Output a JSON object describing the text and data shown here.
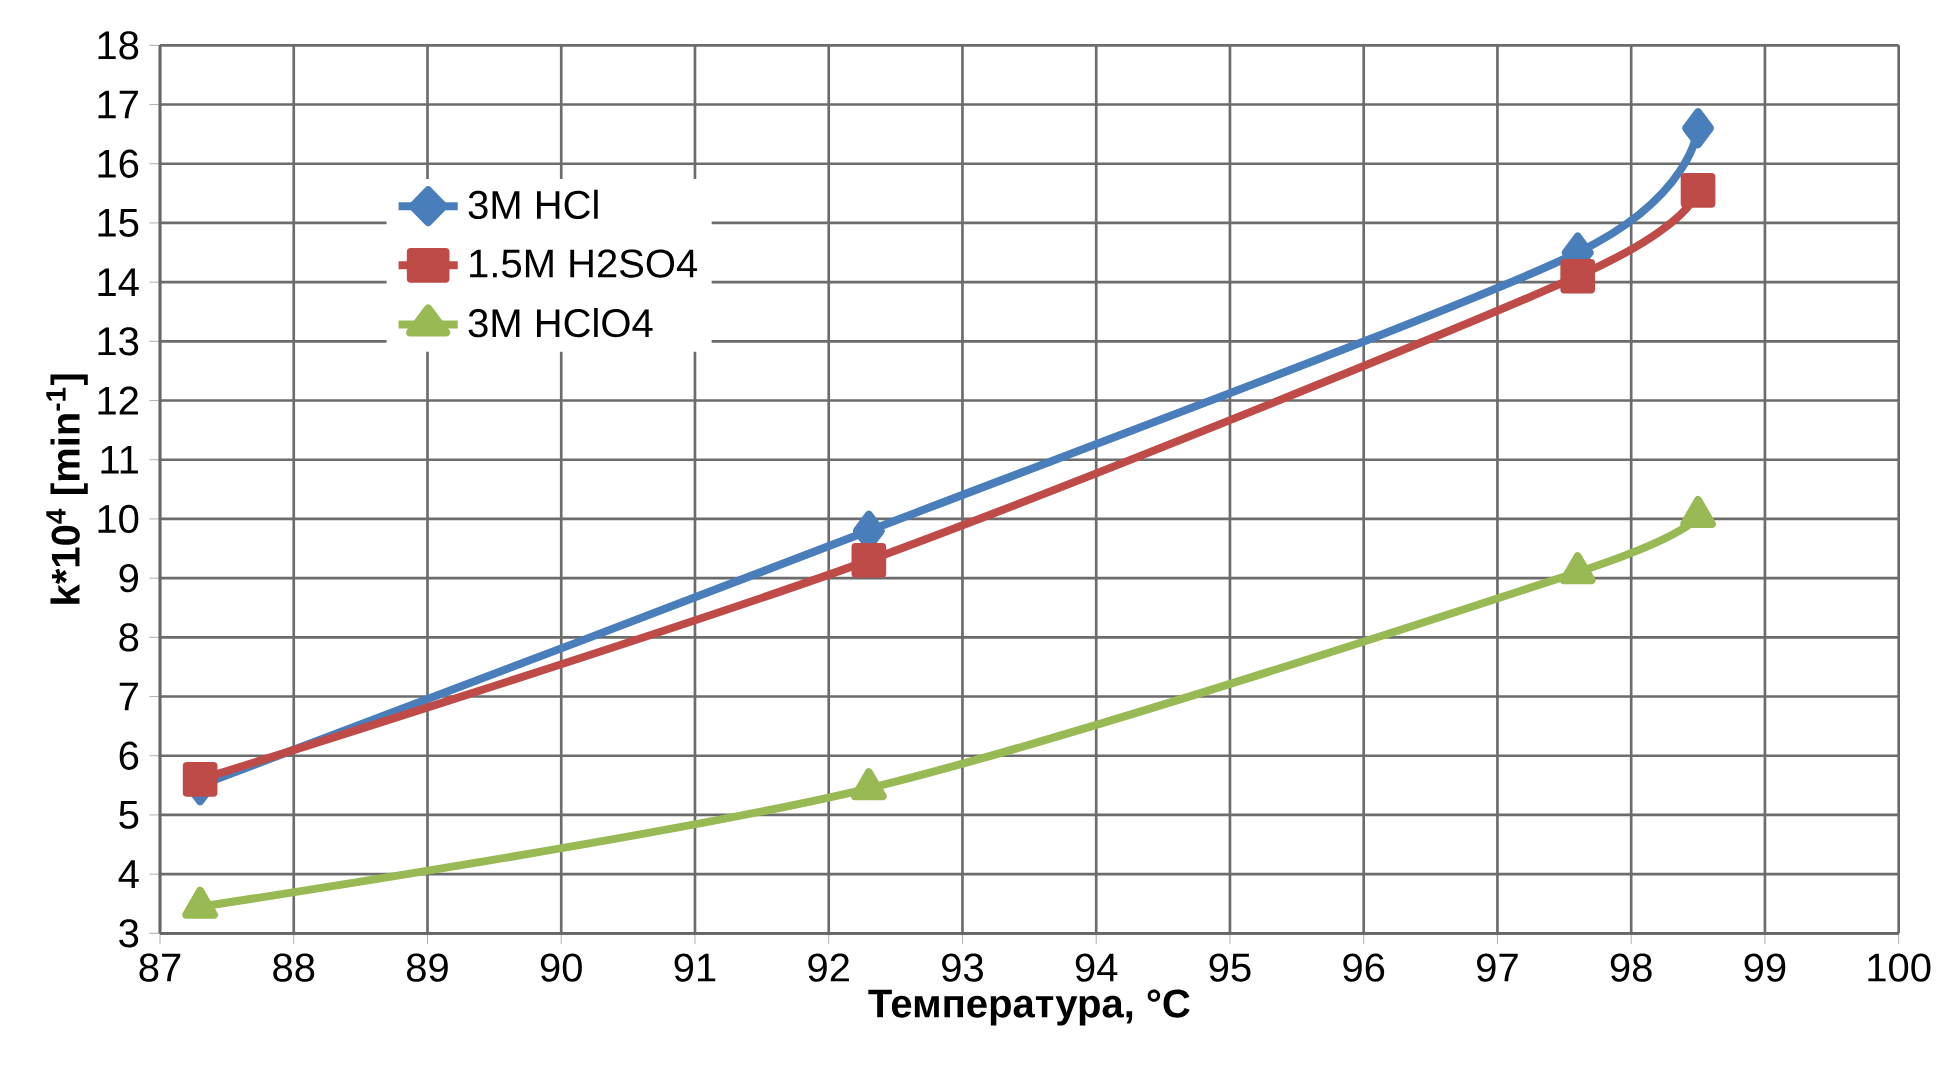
{
  "chart_data": {
    "type": "line",
    "xlabel": "Температура, °C",
    "ylabel": "k*10$^{4}$ [min$^{-1}$]",
    "x": [
      87.3,
      92.3,
      97.6,
      98.5
    ],
    "series": [
      {
        "name": "3M HCl",
        "color": "#4a7ebb",
        "marker": "diamond",
        "values": [
          5.5,
          9.8,
          14.5,
          16.6
        ]
      },
      {
        "name": "1.5M H2SO4",
        "color": "#be4b48",
        "marker": "square",
        "values": [
          5.6,
          9.3,
          14.1,
          15.55
        ]
      },
      {
        "name": "3M HClO4",
        "color": "#98b954",
        "marker": "triangle",
        "values": [
          3.45,
          5.45,
          9.1,
          10.05
        ]
      }
    ],
    "xlim": [
      87,
      100
    ],
    "xticks": [
      87,
      88,
      89,
      90,
      91,
      92,
      93,
      94,
      95,
      96,
      97,
      98,
      99,
      100
    ],
    "ylim": [
      3,
      18
    ],
    "yticks": [
      3,
      4,
      5,
      6,
      7,
      8,
      9,
      10,
      11,
      12,
      13,
      14,
      15,
      16,
      17,
      18
    ],
    "grid": true,
    "legend": "top left",
    "line_style": "solid"
  }
}
